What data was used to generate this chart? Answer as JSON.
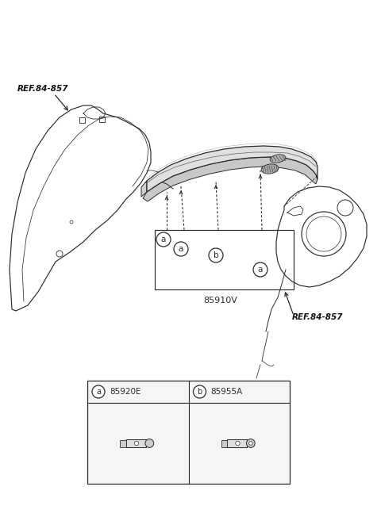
{
  "bg_color": "#ffffff",
  "line_color": "#2a2a2a",
  "ref_label": "REF.84-857",
  "main_part_label": "85910V",
  "part_a_label": "85920E",
  "part_b_label": "85955A",
  "figsize": [
    4.8,
    6.57
  ],
  "dpi": 100
}
